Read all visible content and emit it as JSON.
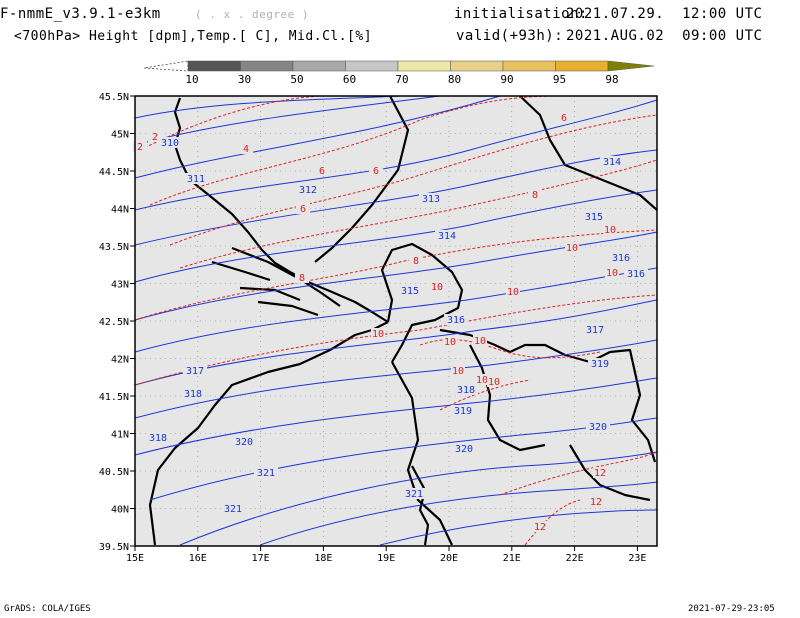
{
  "header": {
    "model": "F-nmmE_v3.9.1-e3km",
    "projection": "( . x . degree )",
    "fields": "<700hPa> Height [dpm],Temp.[ C], Mid.Cl.[%]",
    "init_label": "initialisation:",
    "init_value": "2021.07.29.  12:00 UTC",
    "valid_label": "valid(+93h):",
    "valid_value": "2021.AUG.02  09:00 UTC"
  },
  "colorbar": {
    "labels": [
      "10",
      "30",
      "50",
      "60",
      "70",
      "80",
      "90",
      "95",
      "98"
    ],
    "colors": [
      "#ffffff",
      "#555555",
      "#858585",
      "#a8a8a8",
      "#c6c6c6",
      "#eee8a8",
      "#e8d088",
      "#e8c060",
      "#e8b030",
      "#808000"
    ]
  },
  "axes": {
    "lat_labels": [
      "45.5N",
      "45N",
      "44.5N",
      "44N",
      "43.5N",
      "43N",
      "42.5N",
      "42N",
      "41.5N",
      "41N",
      "40.5N",
      "40N",
      "39.5N"
    ],
    "lon_labels": [
      "15E",
      "16E",
      "17E",
      "18E",
      "19E",
      "20E",
      "21E",
      "22E",
      "23E"
    ]
  },
  "contours": {
    "height_color": "#1a35d8",
    "temp_color": "#e02020",
    "height_labels": [
      "310",
      "311",
      "312",
      "313",
      "314",
      "314",
      "315",
      "315",
      "316",
      "316",
      "316",
      "317",
      "317",
      "318",
      "318",
      "318",
      "319",
      "319",
      "320",
      "320",
      "320",
      "321",
      "321",
      "321"
    ],
    "temp_labels": [
      "2",
      "2",
      "4",
      "6",
      "6",
      "6",
      "6",
      "8",
      "8",
      "8",
      "10",
      "10",
      "10",
      "10",
      "10",
      "10",
      "10",
      "10",
      "10",
      "10",
      "10",
      "12",
      "12",
      "12"
    ]
  },
  "footer": {
    "left": "GrADS: COLA/IGES",
    "right": "2021-07-29-23:05"
  }
}
